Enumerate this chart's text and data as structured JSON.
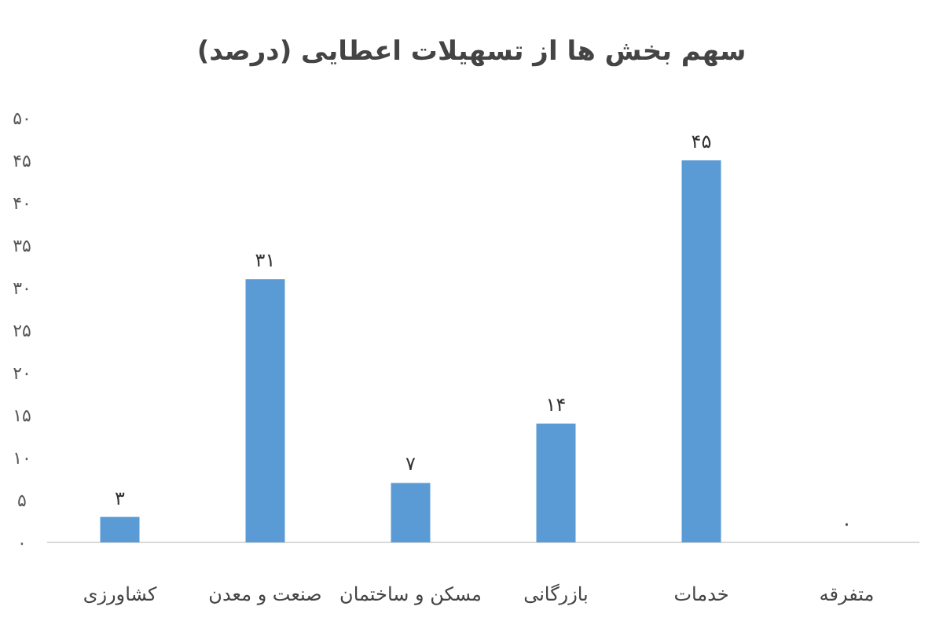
{
  "chart_data": {
    "type": "bar",
    "title": "سهم بخش ها از تسهیلات اعطایی (درصد)",
    "categories": [
      "کشاورزی",
      "صنعت و معدن",
      "مسکن و ساختمان",
      "بازرگانی",
      "خدمات",
      "متفرقه"
    ],
    "values": [
      3,
      31,
      7,
      14,
      45,
      0
    ],
    "value_labels": [
      "۳",
      "۳۱",
      "۷",
      "۱۴",
      "۴۵",
      "۰"
    ],
    "color": "#5b9bd5",
    "ylim": [
      0,
      50
    ],
    "yticks": [
      {
        "value": 0,
        "label": "۰"
      },
      {
        "value": 5,
        "label": "۵"
      },
      {
        "value": 10,
        "label": "۱۰"
      },
      {
        "value": 15,
        "label": "۱۵"
      },
      {
        "value": 20,
        "label": "۲۰"
      },
      {
        "value": 25,
        "label": "۲۵"
      },
      {
        "value": 30,
        "label": "۳۰"
      },
      {
        "value": 35,
        "label": "۳۵"
      },
      {
        "value": 40,
        "label": "۴۰"
      },
      {
        "value": 45,
        "label": "۴۵"
      },
      {
        "value": 50,
        "label": "۵۰"
      }
    ]
  }
}
